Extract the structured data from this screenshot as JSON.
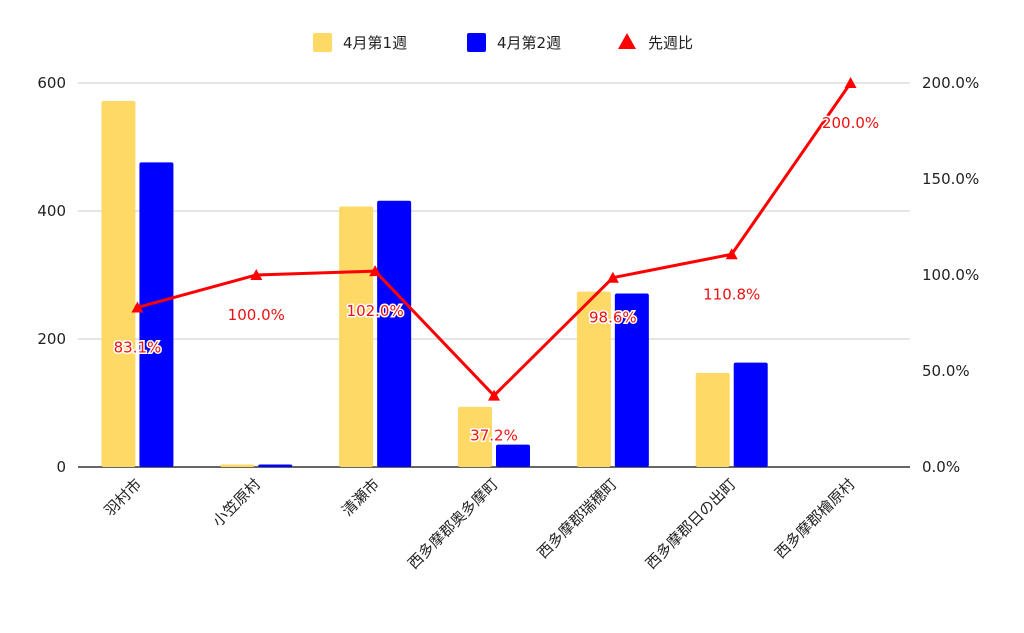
{
  "chart_data": {
    "type": "bar",
    "categories": [
      "羽村市",
      "小笠原村",
      "清瀬市",
      "西多摩郡奥多摩町",
      "西多摩郡瑞穂町",
      "西多摩郡日の出町",
      "西多摩郡檜原村"
    ],
    "series": [
      {
        "name": "4月第1週",
        "type": "bar",
        "axis": "left",
        "color": "#ffd966",
        "values": [
          572,
          4,
          407,
          94,
          274,
          147,
          0
        ]
      },
      {
        "name": "4月第2週",
        "type": "bar",
        "axis": "left",
        "color": "#0000ff",
        "values": [
          476,
          4,
          416,
          35,
          271,
          163,
          0
        ]
      },
      {
        "name": "先週比",
        "type": "line",
        "marker": "triangle",
        "axis": "right",
        "color": "#ff0000",
        "values": [
          83.1,
          100.0,
          102.0,
          37.2,
          98.6,
          110.8,
          200.0
        ],
        "labels": [
          "83.1%",
          "100.0%",
          "102.0%",
          "37.2%",
          "98.6%",
          "110.8%",
          "200.0%"
        ]
      }
    ],
    "y_left": {
      "ylim": [
        0,
        600
      ],
      "ticks": [
        "0",
        "200",
        "400",
        "600"
      ]
    },
    "y_right": {
      "ylim": [
        0,
        200
      ],
      "ticks": [
        "0.0%",
        "50.0%",
        "100.0%",
        "150.0%",
        "200.0%"
      ]
    },
    "grid": true,
    "legend": "top-center",
    "title": "",
    "xlabel": "",
    "ylabel": ""
  }
}
